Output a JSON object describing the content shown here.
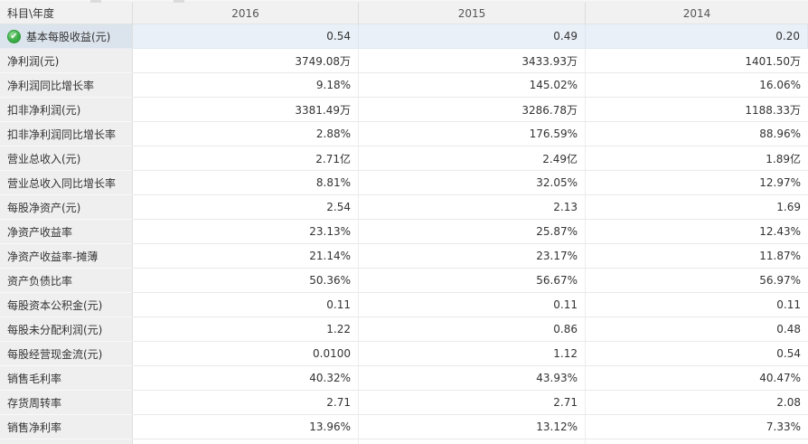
{
  "table": {
    "corner_header": "科目\\年度",
    "years": [
      "2016",
      "2015",
      "2014"
    ],
    "selected_icon": {
      "name": "check-circle-icon",
      "glyph": "✔",
      "color": "#2fa43c"
    },
    "colors": {
      "header_bg": "#f1f1f1",
      "label_bg": "#efefef",
      "highlight_label_bg": "#dbe3ec",
      "highlight_value_bg": "#e9f0f8",
      "border": "#e9e9e9",
      "text": "#333333"
    },
    "rows": [
      {
        "label": "基本每股收益(元)",
        "values": [
          "0.54",
          "0.49",
          "0.20"
        ],
        "highlighted": true
      },
      {
        "label": "净利润(元)",
        "values": [
          "3749.08万",
          "3433.93万",
          "1401.50万"
        ]
      },
      {
        "label": "净利润同比增长率",
        "values": [
          "9.18%",
          "145.02%",
          "16.06%"
        ]
      },
      {
        "label": "扣非净利润(元)",
        "values": [
          "3381.49万",
          "3286.78万",
          "1188.33万"
        ]
      },
      {
        "label": "扣非净利润同比增长率",
        "values": [
          "2.88%",
          "176.59%",
          "88.96%"
        ]
      },
      {
        "label": "营业总收入(元)",
        "values": [
          "2.71亿",
          "2.49亿",
          "1.89亿"
        ]
      },
      {
        "label": "营业总收入同比增长率",
        "values": [
          "8.81%",
          "32.05%",
          "12.97%"
        ]
      },
      {
        "label": "每股净资产(元)",
        "values": [
          "2.54",
          "2.13",
          "1.69"
        ]
      },
      {
        "label": "净资产收益率",
        "values": [
          "23.13%",
          "25.87%",
          "12.43%"
        ]
      },
      {
        "label": "净资产收益率-摊薄",
        "values": [
          "21.14%",
          "23.17%",
          "11.87%"
        ]
      },
      {
        "label": "资产负债比率",
        "values": [
          "50.36%",
          "56.67%",
          "56.97%"
        ]
      },
      {
        "label": "每股资本公积金(元)",
        "values": [
          "0.11",
          "0.11",
          "0.11"
        ]
      },
      {
        "label": "每股未分配利润(元)",
        "values": [
          "1.22",
          "0.86",
          "0.48"
        ]
      },
      {
        "label": "每股经营现金流(元)",
        "values": [
          "0.0100",
          "1.12",
          "0.54"
        ]
      },
      {
        "label": "销售毛利率",
        "values": [
          "40.32%",
          "43.93%",
          "40.47%"
        ]
      },
      {
        "label": "存货周转率",
        "values": [
          "2.71",
          "2.71",
          "2.08"
        ]
      },
      {
        "label": "销售净利率",
        "values": [
          "13.96%",
          "13.12%",
          "7.33%"
        ]
      }
    ]
  }
}
